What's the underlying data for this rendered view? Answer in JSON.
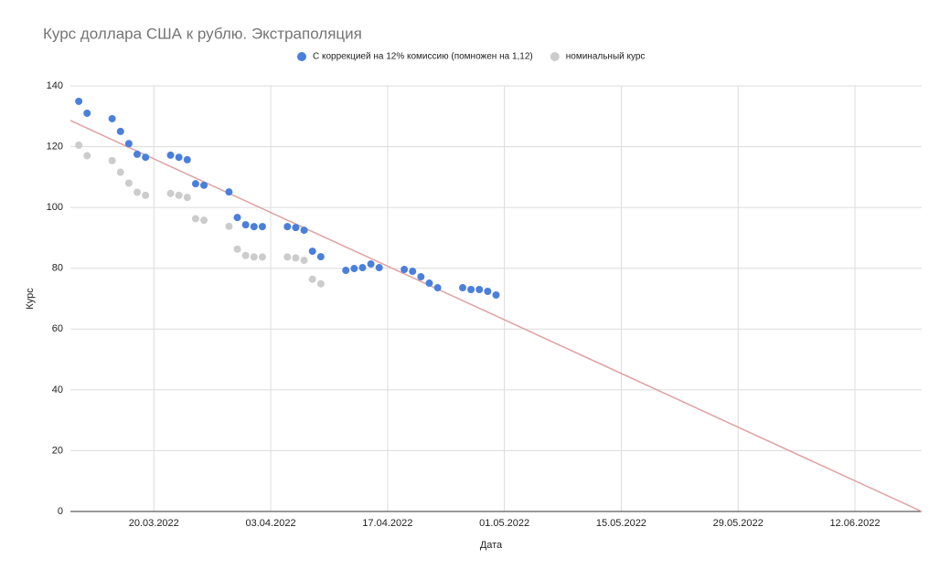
{
  "chart_data": {
    "type": "scatter",
    "title": "Курс доллара США к рублю. Экстраполяция",
    "x_label": "Дата",
    "y_label": "Курс",
    "x": [
      "2022-03-11",
      "2022-03-12",
      "2022-03-15",
      "2022-03-16",
      "2022-03-17",
      "2022-03-18",
      "2022-03-19",
      "2022-03-22",
      "2022-03-23",
      "2022-03-24",
      "2022-03-25",
      "2022-03-26",
      "2022-03-29",
      "2022-03-30",
      "2022-03-31",
      "2022-04-01",
      "2022-04-02",
      "2022-04-05",
      "2022-04-06",
      "2022-04-07",
      "2022-04-08",
      "2022-04-09",
      "2022-04-12",
      "2022-04-13",
      "2022-04-14",
      "2022-04-15",
      "2022-04-16",
      "2022-04-19",
      "2022-04-20",
      "2022-04-21",
      "2022-04-22",
      "2022-04-23",
      "2022-04-26",
      "2022-04-27",
      "2022-04-28",
      "2022-04-29",
      "2022-04-30"
    ],
    "series": [
      {
        "name": "С коррекцией на 12% комиссию (помножен на 1,12)",
        "color": "#4a7fdc",
        "values": [
          134.9,
          131,
          129.2,
          125,
          121,
          117.5,
          116.5,
          117.2,
          116.5,
          115.7,
          107.8,
          107.3,
          105.1,
          96.7,
          94.3,
          93.7,
          93.7,
          93.7,
          93.4,
          92.5,
          85.6,
          83.8,
          79.3,
          79.9,
          80.2,
          81.4,
          80.2,
          79.6,
          79,
          77.2,
          75.1,
          73.6,
          73.6,
          73,
          73,
          72.4,
          71.2
        ]
      },
      {
        "name": "номинальный курс",
        "color": "#cccccc",
        "values": [
          120.5,
          117,
          115.4,
          111.6,
          108,
          105,
          104,
          104.6,
          104,
          103.3,
          96.3,
          95.8,
          93.8,
          86.3,
          84.2,
          83.7,
          83.7,
          83.7,
          83.4,
          82.6,
          76.4,
          74.9,
          null,
          null,
          null,
          null,
          null,
          null,
          null,
          null,
          null,
          null,
          null,
          null,
          null,
          null,
          null
        ]
      }
    ],
    "trendline": {
      "x": [
        "2022-03-10",
        "2022-06-20"
      ],
      "values": [
        128.6,
        0
      ],
      "color": "#e0a0a0"
    },
    "xlim": [
      "2022-03-10",
      "2022-06-20"
    ],
    "xticks": [
      {
        "value": "2022-03-20",
        "label": "20.03.2022"
      },
      {
        "value": "2022-04-03",
        "label": "03.04.2022"
      },
      {
        "value": "2022-04-17",
        "label": "17.04.2022"
      },
      {
        "value": "2022-05-01",
        "label": "01.05.2022"
      },
      {
        "value": "2022-05-15",
        "label": "15.05.2022"
      },
      {
        "value": "2022-05-29",
        "label": "29.05.2022"
      },
      {
        "value": "2022-06-12",
        "label": "12.06.2022"
      }
    ],
    "ylim": [
      0,
      140
    ],
    "yticks": [
      0,
      20,
      40,
      60,
      80,
      100,
      120,
      140
    ],
    "grid": true
  }
}
